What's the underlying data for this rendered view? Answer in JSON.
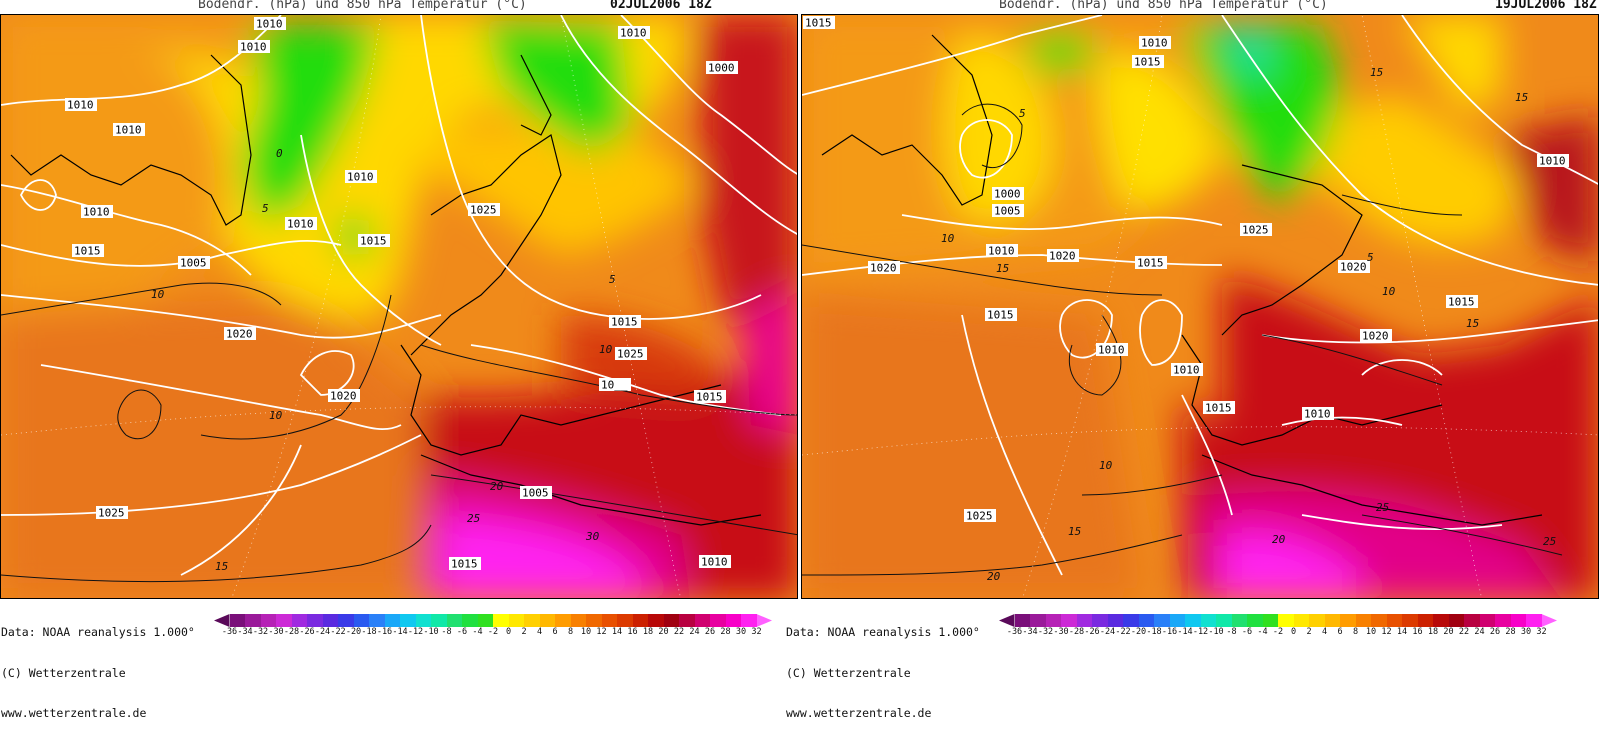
{
  "panels": [
    {
      "title": "Bodendr. (hPa) und 850 hPa Temperatur (°C)",
      "date": "02JUL2006 18Z",
      "pressure_labels": [
        "1010",
        "1010",
        "1010",
        "1010",
        "1010",
        "1015",
        "1005",
        "1010",
        "1015",
        "1010",
        "1025",
        "1000",
        "1020",
        "1020",
        "1025",
        "1015",
        "1025",
        "10__",
        "1015",
        "1005",
        "1015",
        "1010",
        "1010"
      ],
      "temp_labels": [
        "10",
        "10",
        "5",
        "0",
        "5",
        "20",
        "25",
        "30",
        "15",
        "10"
      ]
    },
    {
      "title": "Bodendr. (hPa) und 850 hPa Temperatur (°C)",
      "date": "19JUL2006 18Z",
      "pressure_labels": [
        "1015",
        "1010",
        "1015",
        "1000",
        "1005",
        "1010",
        "1020",
        "1025",
        "1015",
        "1020",
        "1010",
        "1010",
        "1015",
        "1020",
        "1015",
        "1020",
        "1015",
        "1025",
        "1010",
        "1010"
      ],
      "temp_labels": [
        "15",
        "15",
        "5",
        "10",
        "15",
        "5",
        "10",
        "15",
        "20",
        "25",
        "15",
        "20",
        "25",
        "10"
      ]
    }
  ],
  "footer": {
    "line1": "Data: NOAA reanalysis 1.000°",
    "line2": "(C) Wetterzentrale",
    "line3": "www.wetterzentrale.de"
  },
  "scale": {
    "ticks": [
      "-36",
      "-34",
      "-32",
      "-30",
      "-28",
      "-26",
      "-24",
      "-22",
      "-20",
      "-18",
      "-16",
      "-14",
      "-12",
      "-10",
      "-8",
      "-6",
      "-4",
      "-2",
      "0",
      "2",
      "4",
      "6",
      "8",
      "10",
      "12",
      "14",
      "16",
      "18",
      "20",
      "22",
      "24",
      "26",
      "28",
      "30",
      "32"
    ],
    "colors": [
      "#5a0a5a",
      "#7a0f7a",
      "#9a1a9a",
      "#b622b6",
      "#cc2ad6",
      "#a02ae0",
      "#7a2ae0",
      "#5a2ae0",
      "#3a3ae8",
      "#2a5af0",
      "#2a80f8",
      "#1aa8f8",
      "#10c8f0",
      "#10e0d0",
      "#10e8a8",
      "#20e070",
      "#20e040",
      "#30e020",
      "#ffff00",
      "#ffe800",
      "#ffd000",
      "#ffb800",
      "#ff9c00",
      "#f88000",
      "#f06800",
      "#e85000",
      "#dc3a00",
      "#cc2000",
      "#b80808",
      "#a00010",
      "#b80040",
      "#d00070",
      "#e800a0",
      "#f800c8",
      "#ff20f0",
      "#ff60ff"
    ],
    "colors_note": "color swatches"
  }
}
